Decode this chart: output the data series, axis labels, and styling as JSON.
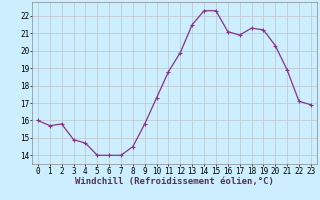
{
  "x": [
    0,
    1,
    2,
    3,
    4,
    5,
    6,
    7,
    8,
    9,
    10,
    11,
    12,
    13,
    14,
    15,
    16,
    17,
    18,
    19,
    20,
    21,
    22,
    23
  ],
  "y": [
    16.0,
    15.7,
    15.8,
    14.9,
    14.7,
    14.0,
    14.0,
    14.0,
    14.5,
    15.8,
    17.3,
    18.8,
    19.9,
    21.5,
    22.3,
    22.3,
    21.1,
    20.9,
    21.3,
    21.2,
    20.3,
    18.9,
    17.1,
    16.9
  ],
  "line_color": "#883388",
  "marker_color": "#883388",
  "bg_color": "#cceeff",
  "grid_color": "#bbbbbb",
  "xlabel": "Windchill (Refroidissement éolien,°C)",
  "xlim": [
    -0.5,
    23.5
  ],
  "ylim": [
    13.5,
    22.8
  ],
  "yticks": [
    14,
    15,
    16,
    17,
    18,
    19,
    20,
    21,
    22
  ],
  "xticks": [
    0,
    1,
    2,
    3,
    4,
    5,
    6,
    7,
    8,
    9,
    10,
    11,
    12,
    13,
    14,
    15,
    16,
    17,
    18,
    19,
    20,
    21,
    22,
    23
  ],
  "xlabel_fontsize": 6.5,
  "tick_fontsize": 5.5,
  "linewidth": 0.9,
  "markersize": 2.0
}
